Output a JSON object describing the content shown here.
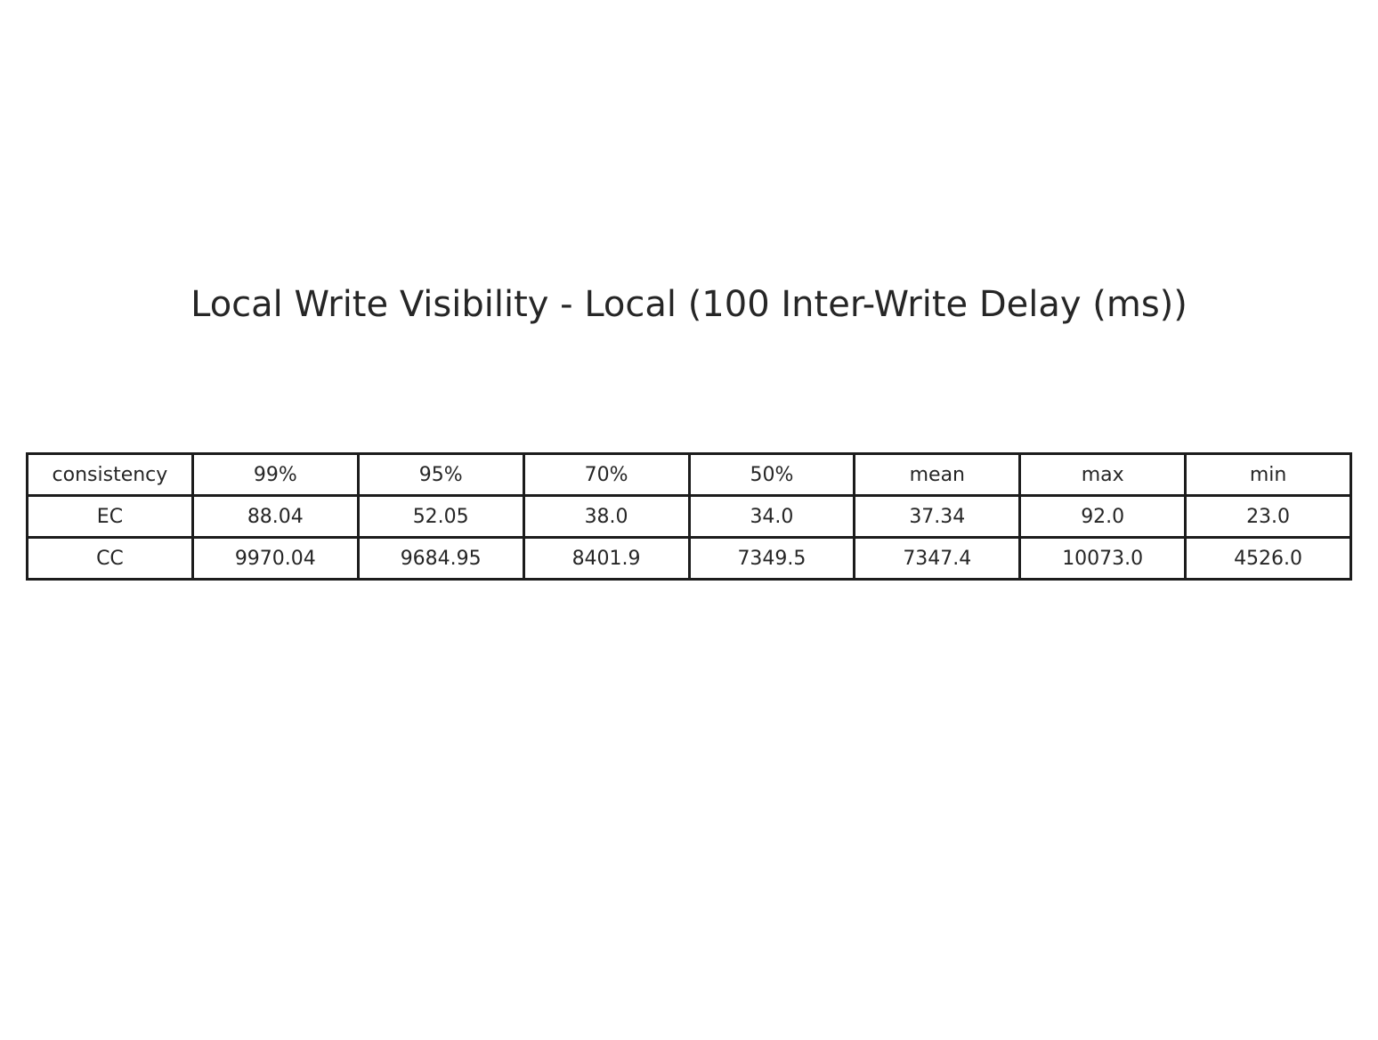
{
  "chart_data": {
    "type": "table",
    "title": "Local Write Visibility - Local (100 Inter-Write Delay (ms))",
    "columns": [
      "consistency",
      "99%",
      "95%",
      "70%",
      "50%",
      "mean",
      "max",
      "min"
    ],
    "rows": [
      [
        "EC",
        "88.04",
        "52.05",
        "38.0",
        "34.0",
        "37.34",
        "92.0",
        "23.0"
      ],
      [
        "CC",
        "9970.04",
        "9684.95",
        "8401.9",
        "7349.5",
        "7347.4",
        "10073.0",
        "4526.0"
      ]
    ]
  },
  "colors": {
    "text": "#262626",
    "grid": "#1c1c1c",
    "background": "#ffffff"
  }
}
